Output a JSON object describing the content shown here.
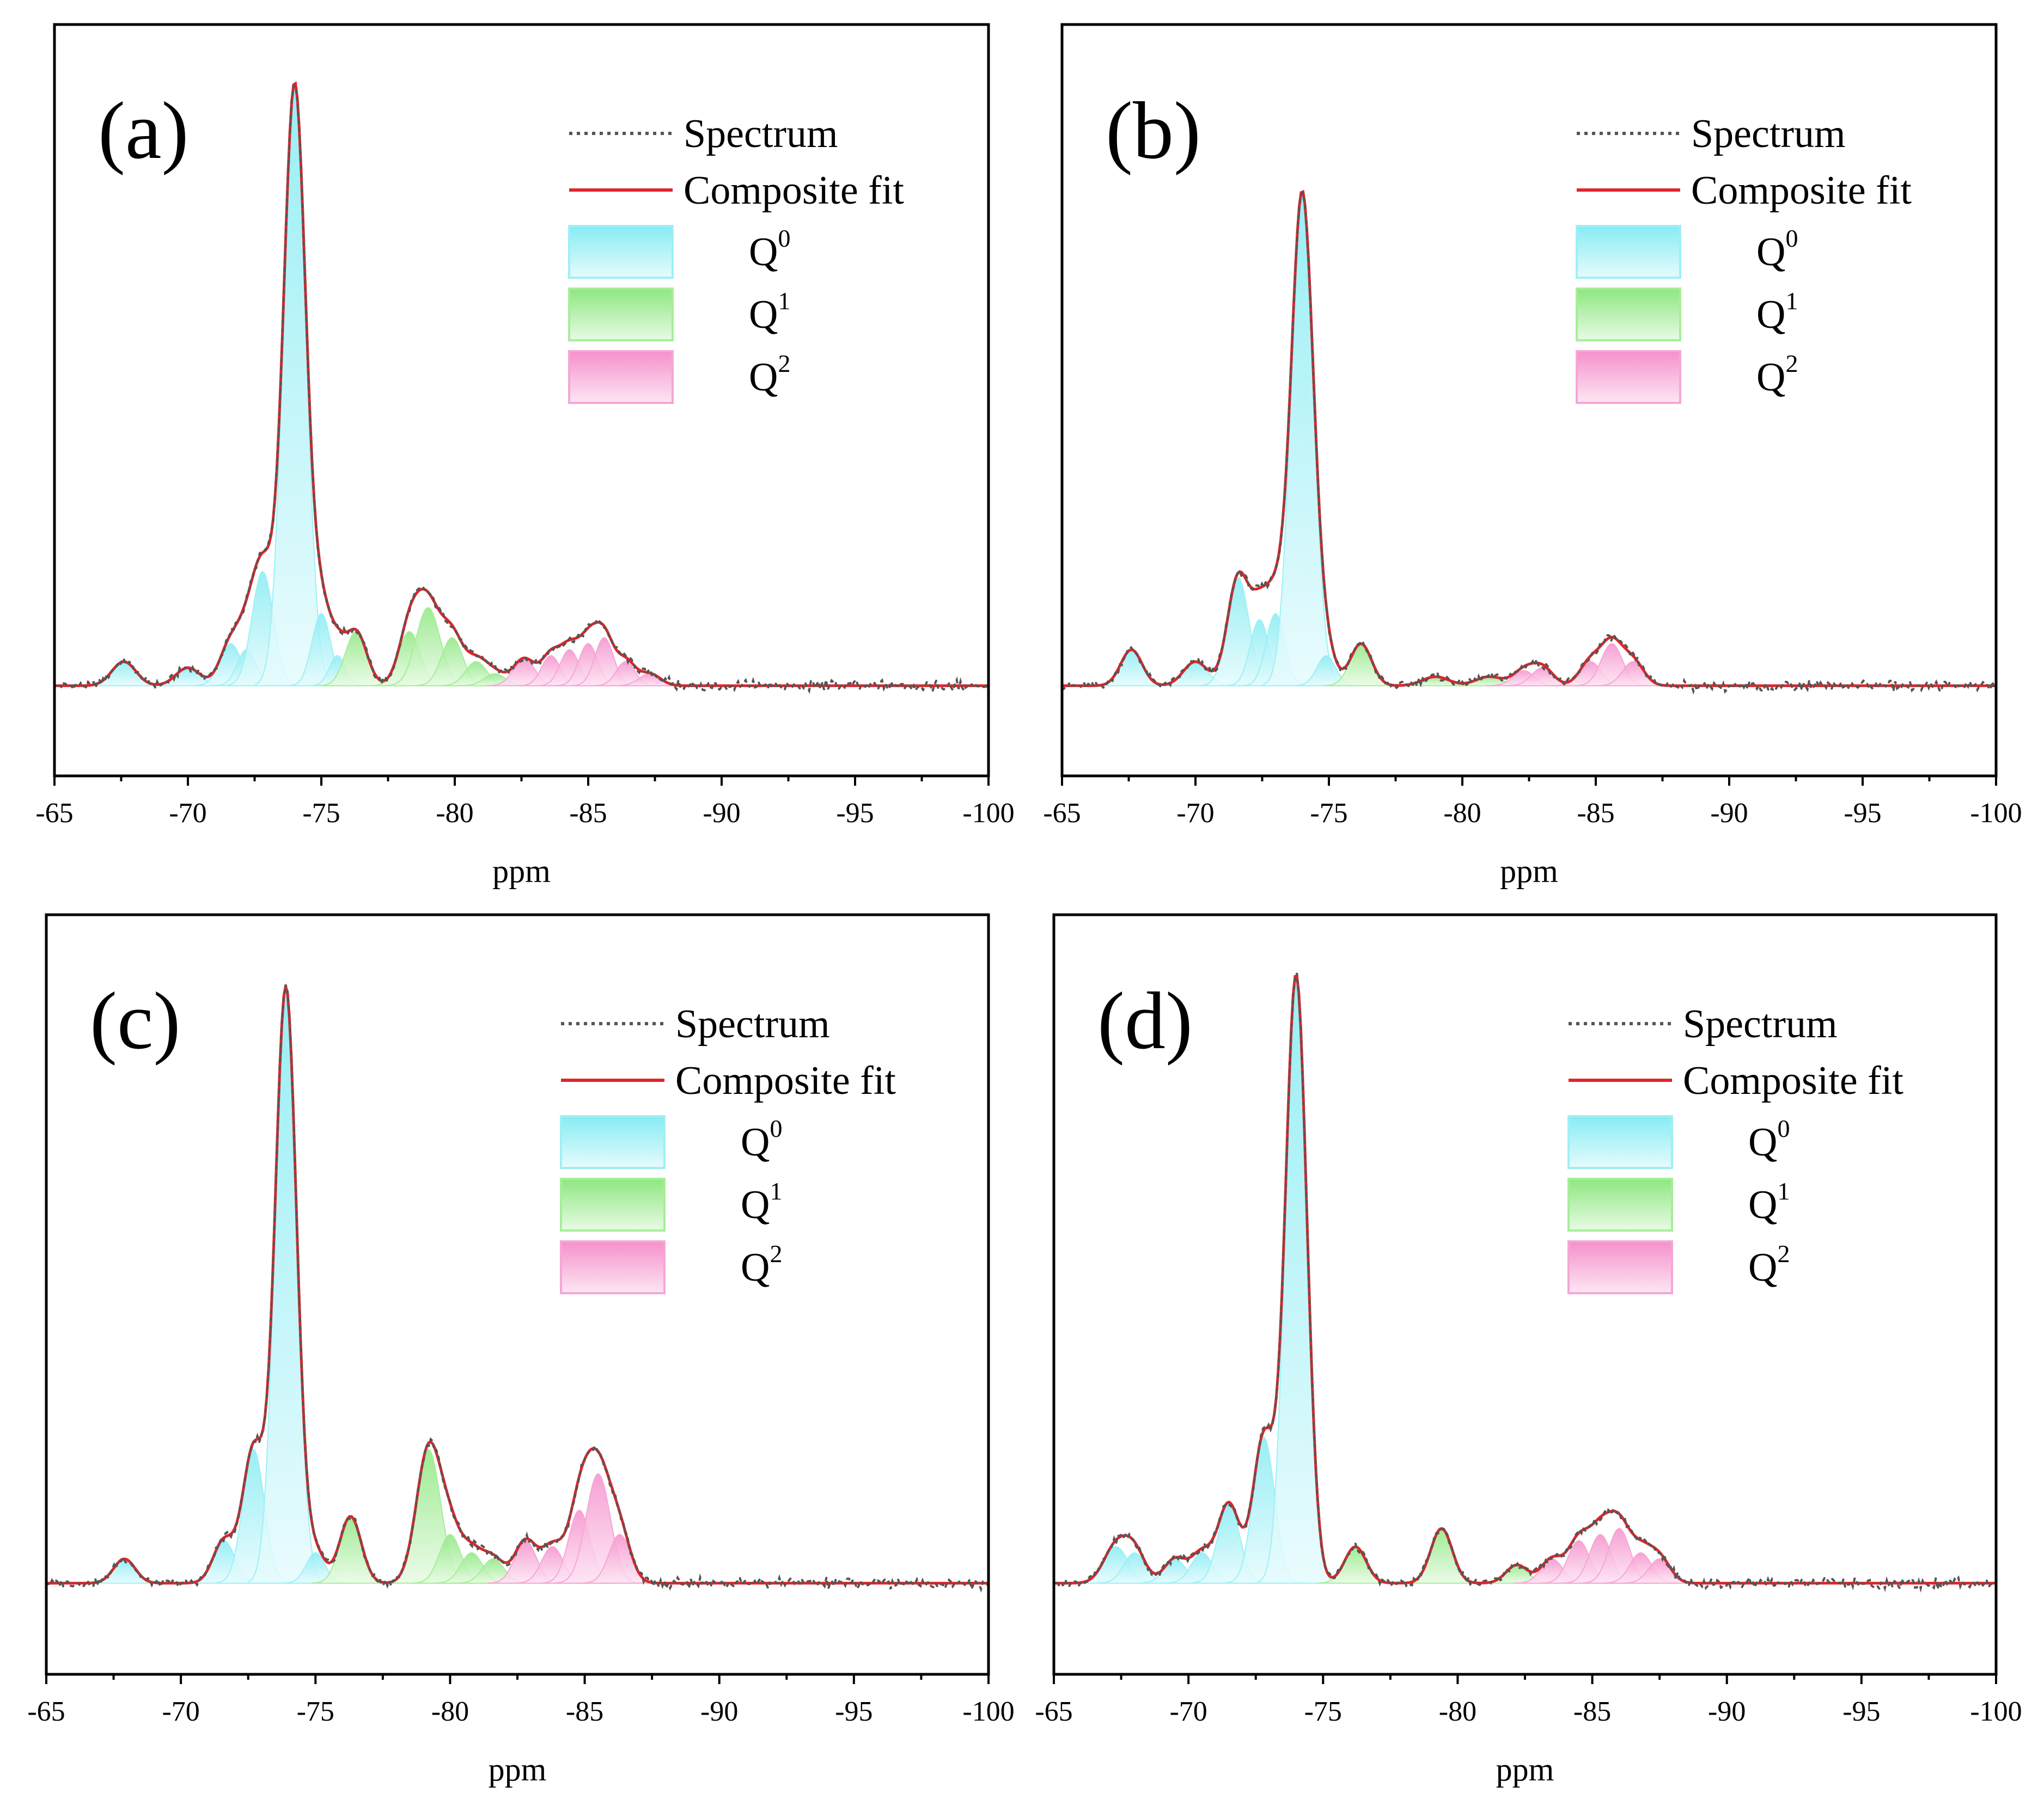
{
  "legend": {
    "spectrum": "Spectrum",
    "fit": "Composite fit",
    "q0": {
      "base": "Q",
      "sup": "0"
    },
    "q1": {
      "base": "Q",
      "sup": "1"
    },
    "q2": {
      "base": "Q",
      "sup": "2"
    }
  },
  "colors": {
    "q0": "#9ef0f5",
    "q1": "#a6ee9a",
    "q2": "#f6a6d6",
    "fit": "#e0252a",
    "spectrum": "#555555"
  },
  "chart_data": [
    {
      "type": "line",
      "label": "(a)",
      "xlabel": "ppm",
      "xlim": [
        -65,
        -100
      ],
      "ylim": [
        -0.15,
        1.1
      ],
      "xticks": [
        "-65",
        "-70",
        "-75",
        "-80",
        "-85",
        "-90",
        "-95",
        "-100"
      ],
      "peaks": [
        {
          "group": "q0",
          "center": -67.6,
          "amp": 0.04,
          "width": 0.45
        },
        {
          "group": "q0",
          "center": -70.0,
          "amp": 0.03,
          "width": 0.45
        },
        {
          "group": "q0",
          "center": -71.6,
          "amp": 0.07,
          "width": 0.4
        },
        {
          "group": "q0",
          "center": -72.2,
          "amp": 0.06,
          "width": 0.35
        },
        {
          "group": "q0",
          "center": -72.8,
          "amp": 0.19,
          "width": 0.4
        },
        {
          "group": "q0",
          "center": -74.0,
          "amp": 1.0,
          "width": 0.42
        },
        {
          "group": "q0",
          "center": -75.0,
          "amp": 0.12,
          "width": 0.35
        },
        {
          "group": "q0",
          "center": -75.6,
          "amp": 0.05,
          "width": 0.3
        },
        {
          "group": "q1",
          "center": -76.3,
          "amp": 0.09,
          "width": 0.4
        },
        {
          "group": "q1",
          "center": -78.3,
          "amp": 0.09,
          "width": 0.4
        },
        {
          "group": "q1",
          "center": -79.0,
          "amp": 0.13,
          "width": 0.45
        },
        {
          "group": "q1",
          "center": -79.9,
          "amp": 0.08,
          "width": 0.4
        },
        {
          "group": "q1",
          "center": -80.8,
          "amp": 0.04,
          "width": 0.4
        },
        {
          "group": "q1",
          "center": -81.5,
          "amp": 0.02,
          "width": 0.4
        },
        {
          "group": "q2",
          "center": -82.6,
          "amp": 0.045,
          "width": 0.4
        },
        {
          "group": "q2",
          "center": -83.6,
          "amp": 0.05,
          "width": 0.35
        },
        {
          "group": "q2",
          "center": -84.3,
          "amp": 0.06,
          "width": 0.35
        },
        {
          "group": "q2",
          "center": -85.0,
          "amp": 0.07,
          "width": 0.35
        },
        {
          "group": "q2",
          "center": -85.6,
          "amp": 0.08,
          "width": 0.35
        },
        {
          "group": "q2",
          "center": -86.4,
          "amp": 0.04,
          "width": 0.35
        },
        {
          "group": "q2",
          "center": -87.3,
          "amp": 0.02,
          "width": 0.4
        }
      ]
    },
    {
      "type": "line",
      "label": "(b)",
      "xlabel": "ppm",
      "xlim": [
        -65,
        -100
      ],
      "ylim": [
        -0.15,
        1.1
      ],
      "xticks": [
        "-65",
        "-70",
        "-75",
        "-80",
        "-85",
        "-90",
        "-95",
        "-100"
      ],
      "peaks": [
        {
          "group": "q0",
          "center": -67.6,
          "amp": 0.06,
          "width": 0.4
        },
        {
          "group": "q0",
          "center": -70.0,
          "amp": 0.04,
          "width": 0.45
        },
        {
          "group": "q0",
          "center": -71.6,
          "amp": 0.18,
          "width": 0.4
        },
        {
          "group": "q0",
          "center": -72.4,
          "amp": 0.11,
          "width": 0.35
        },
        {
          "group": "q0",
          "center": -73.0,
          "amp": 0.12,
          "width": 0.35
        },
        {
          "group": "q0",
          "center": -74.0,
          "amp": 0.82,
          "width": 0.42
        },
        {
          "group": "q0",
          "center": -74.9,
          "amp": 0.05,
          "width": 0.35
        },
        {
          "group": "q1",
          "center": -76.2,
          "amp": 0.07,
          "width": 0.4
        },
        {
          "group": "q1",
          "center": -79.0,
          "amp": 0.015,
          "width": 0.5
        },
        {
          "group": "q1",
          "center": -81.0,
          "amp": 0.015,
          "width": 0.5
        },
        {
          "group": "q2",
          "center": -82.3,
          "amp": 0.025,
          "width": 0.4
        },
        {
          "group": "q2",
          "center": -83.0,
          "amp": 0.03,
          "width": 0.4
        },
        {
          "group": "q2",
          "center": -84.8,
          "amp": 0.04,
          "width": 0.4
        },
        {
          "group": "q2",
          "center": -85.6,
          "amp": 0.07,
          "width": 0.4
        },
        {
          "group": "q2",
          "center": -86.4,
          "amp": 0.04,
          "width": 0.4
        }
      ]
    },
    {
      "type": "line",
      "label": "(c)",
      "xlabel": "ppm",
      "xlim": [
        -65,
        -100
      ],
      "ylim": [
        -0.15,
        1.1
      ],
      "xticks": [
        "-65",
        "-70",
        "-75",
        "-80",
        "-85",
        "-90",
        "-95",
        "-100"
      ],
      "peaks": [
        {
          "group": "q0",
          "center": -67.9,
          "amp": 0.04,
          "width": 0.4
        },
        {
          "group": "q0",
          "center": -71.6,
          "amp": 0.07,
          "width": 0.4
        },
        {
          "group": "q0",
          "center": -72.7,
          "amp": 0.22,
          "width": 0.4
        },
        {
          "group": "q0",
          "center": -73.9,
          "amp": 0.98,
          "width": 0.4
        },
        {
          "group": "q0",
          "center": -75.0,
          "amp": 0.05,
          "width": 0.35
        },
        {
          "group": "q1",
          "center": -76.3,
          "amp": 0.11,
          "width": 0.4
        },
        {
          "group": "q1",
          "center": -79.2,
          "amp": 0.22,
          "width": 0.45
        },
        {
          "group": "q1",
          "center": -80.0,
          "amp": 0.08,
          "width": 0.4
        },
        {
          "group": "q1",
          "center": -80.8,
          "amp": 0.05,
          "width": 0.4
        },
        {
          "group": "q1",
          "center": -81.6,
          "amp": 0.04,
          "width": 0.4
        },
        {
          "group": "q2",
          "center": -82.8,
          "amp": 0.07,
          "width": 0.4
        },
        {
          "group": "q2",
          "center": -83.8,
          "amp": 0.06,
          "width": 0.4
        },
        {
          "group": "q2",
          "center": -84.8,
          "amp": 0.12,
          "width": 0.4
        },
        {
          "group": "q2",
          "center": -85.5,
          "amp": 0.18,
          "width": 0.45
        },
        {
          "group": "q2",
          "center": -86.3,
          "amp": 0.08,
          "width": 0.4
        }
      ]
    },
    {
      "type": "line",
      "label": "(d)",
      "xlabel": "ppm",
      "xlim": [
        -65,
        -100
      ],
      "ylim": [
        -0.15,
        1.1
      ],
      "xticks": [
        "-65",
        "-70",
        "-75",
        "-80",
        "-85",
        "-90",
        "-95",
        "-100"
      ],
      "peaks": [
        {
          "group": "q0",
          "center": -67.3,
          "amp": 0.06,
          "width": 0.45
        },
        {
          "group": "q0",
          "center": -68.0,
          "amp": 0.05,
          "width": 0.4
        },
        {
          "group": "q0",
          "center": -69.5,
          "amp": 0.04,
          "width": 0.4
        },
        {
          "group": "q0",
          "center": -70.5,
          "amp": 0.05,
          "width": 0.4
        },
        {
          "group": "q0",
          "center": -71.5,
          "amp": 0.13,
          "width": 0.4
        },
        {
          "group": "q0",
          "center": -72.8,
          "amp": 0.24,
          "width": 0.4
        },
        {
          "group": "q0",
          "center": -74.0,
          "amp": 1.0,
          "width": 0.4
        },
        {
          "group": "q1",
          "center": -76.2,
          "amp": 0.06,
          "width": 0.4
        },
        {
          "group": "q1",
          "center": -79.4,
          "amp": 0.09,
          "width": 0.4
        },
        {
          "group": "q1",
          "center": -82.2,
          "amp": 0.03,
          "width": 0.4
        },
        {
          "group": "q2",
          "center": -83.5,
          "amp": 0.04,
          "width": 0.4
        },
        {
          "group": "q2",
          "center": -84.5,
          "amp": 0.07,
          "width": 0.4
        },
        {
          "group": "q2",
          "center": -85.3,
          "amp": 0.08,
          "width": 0.4
        },
        {
          "group": "q2",
          "center": -86.0,
          "amp": 0.09,
          "width": 0.4
        },
        {
          "group": "q2",
          "center": -86.8,
          "amp": 0.05,
          "width": 0.4
        },
        {
          "group": "q2",
          "center": -87.5,
          "amp": 0.04,
          "width": 0.4
        }
      ]
    }
  ]
}
